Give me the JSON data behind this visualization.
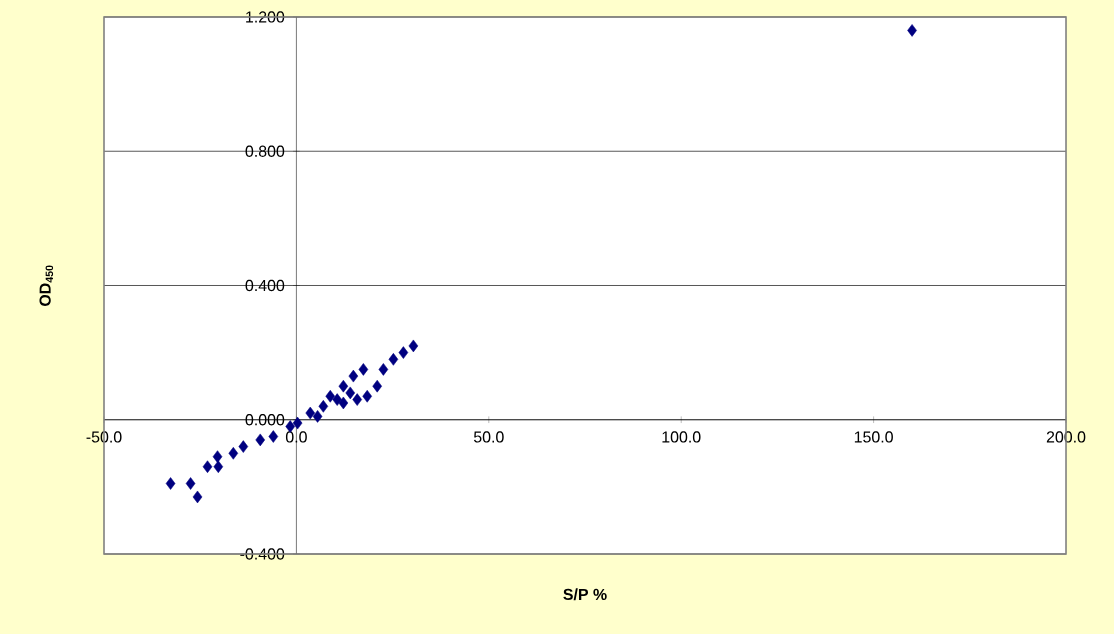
{
  "chart_data": {
    "type": "scatter",
    "xlabel": "S/P %",
    "ylabel": "OD$_{450}$",
    "xlim": [
      -50,
      200
    ],
    "ylim": [
      -0.4,
      1.2
    ],
    "xticks": [
      {
        "value": -50,
        "label": "-50.0"
      },
      {
        "value": 0,
        "label": "0.0"
      },
      {
        "value": 50,
        "label": "50.0"
      },
      {
        "value": 100,
        "label": "100.0"
      },
      {
        "value": 150,
        "label": "150.0"
      },
      {
        "value": 200,
        "label": "200.0"
      }
    ],
    "yticks": [
      {
        "value": -0.4,
        "label": "-0.400"
      },
      {
        "value": 0,
        "label": "0.000"
      },
      {
        "value": 0.4,
        "label": "0.400"
      },
      {
        "value": 0.8,
        "label": "0.800"
      },
      {
        "value": 1.2,
        "label": "1.200"
      }
    ],
    "grid": "y",
    "marker": "diamond",
    "series": [
      {
        "color": "#000080",
        "x": [
          -32.7,
          -27.5,
          -25.7,
          -23.1,
          -20.5,
          -20.3,
          -16.4,
          -13.8,
          -9.4,
          -6.0,
          -1.6,
          0.3,
          3.6,
          5.5,
          7.0,
          8.8,
          10.6,
          12.2,
          12.2,
          14.0,
          14.8,
          15.8,
          17.4,
          18.4,
          21.0,
          22.6,
          25.2,
          27.8,
          30.4,
          160.0
        ],
        "values": [
          -0.19,
          -0.19,
          -0.23,
          -0.14,
          -0.11,
          -0.14,
          -0.1,
          -0.08,
          -0.06,
          -0.05,
          -0.02,
          -0.01,
          0.02,
          0.01,
          0.04,
          0.07,
          0.06,
          0.05,
          0.1,
          0.08,
          0.13,
          0.06,
          0.15,
          0.07,
          0.1,
          0.15,
          0.18,
          0.2,
          0.22,
          1.16
        ]
      }
    ]
  }
}
